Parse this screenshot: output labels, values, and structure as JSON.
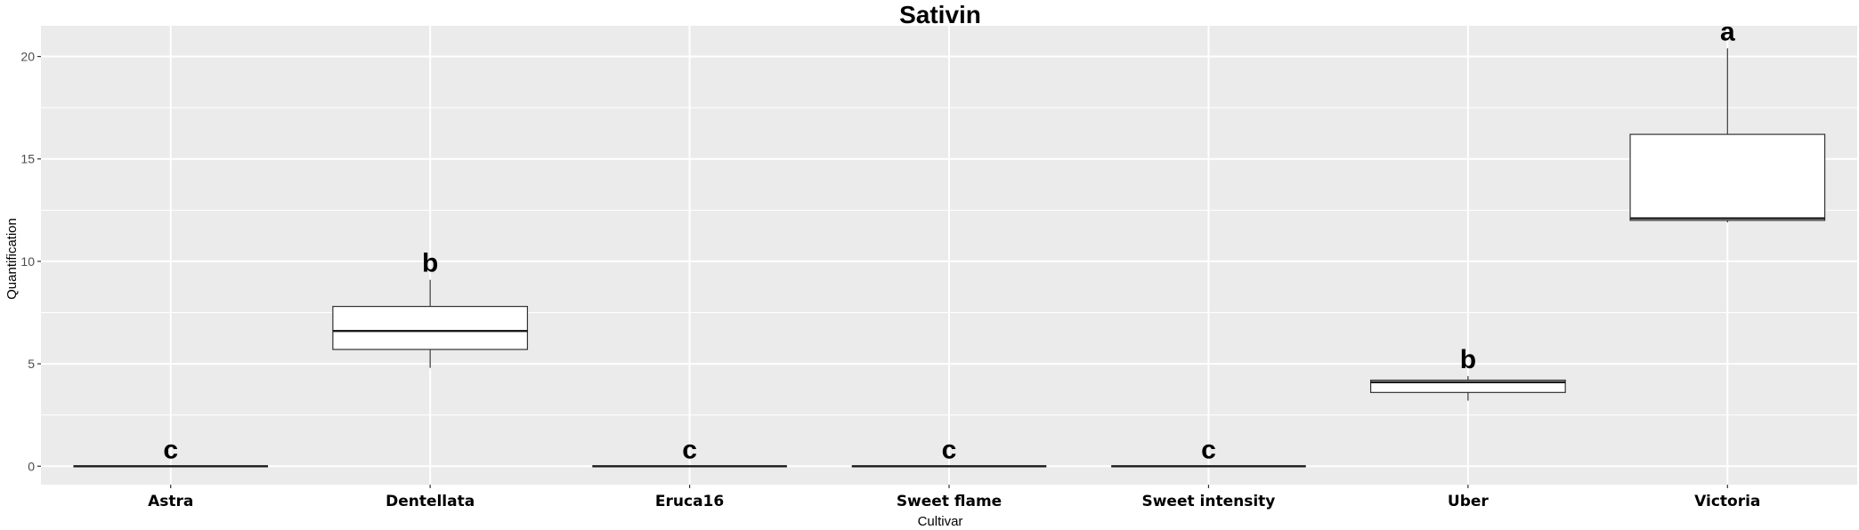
{
  "chart_data": {
    "type": "box",
    "title": "Sativin",
    "xlabel": "Cultivar",
    "ylabel": "Quantification",
    "ylim": [
      -0.9,
      21.5
    ],
    "yticks": [
      0,
      5,
      10,
      15,
      20
    ],
    "grid": true,
    "categories": [
      "Astra",
      "Dentellata",
      "Eruca16",
      "Sweet flame",
      "Sweet intensity",
      "Uber",
      "Victoria"
    ],
    "boxes": [
      {
        "min": 0,
        "q1": 0,
        "median": 0,
        "q3": 0,
        "max": 0,
        "letter": "c"
      },
      {
        "min": 4.8,
        "q1": 5.7,
        "median": 6.6,
        "q3": 7.8,
        "max": 9.1,
        "letter": "b"
      },
      {
        "min": 0,
        "q1": 0,
        "median": 0,
        "q3": 0,
        "max": 0,
        "letter": "c"
      },
      {
        "min": 0,
        "q1": 0,
        "median": 0,
        "q3": 0,
        "max": 0,
        "letter": "c"
      },
      {
        "min": 0,
        "q1": 0,
        "median": 0,
        "q3": 0,
        "max": 0,
        "letter": "c"
      },
      {
        "min": 3.2,
        "q1": 3.6,
        "median": 4.1,
        "q3": 4.2,
        "max": 4.4,
        "letter": "b"
      },
      {
        "min": 11.9,
        "q1": 12.0,
        "median": 12.1,
        "q3": 16.2,
        "max": 20.4,
        "letter": "a"
      }
    ]
  }
}
